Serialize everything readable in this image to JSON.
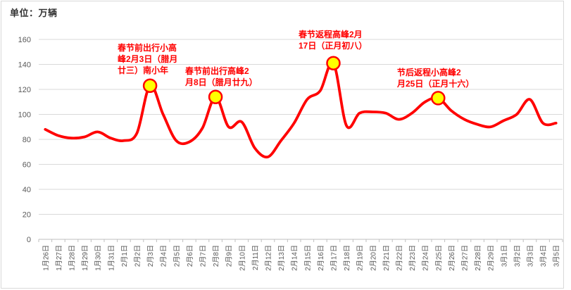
{
  "chart_data": {
    "type": "line",
    "unit_label": "单位：万辆",
    "xlabel": "",
    "ylabel": "",
    "ylim": [
      0,
      160
    ],
    "ytick_interval": 20,
    "grid": "horizontal",
    "legend": "none",
    "line_color": "#ff0000",
    "marker_fill": "#ffff00",
    "grid_color": "#d9d9d9",
    "axis_line_color": "#bfbfbf",
    "axis_text_color": "#595959",
    "categories": [
      "1月26日",
      "1月27日",
      "1月28日",
      "1月29日",
      "1月30日",
      "1月31日",
      "2月1日",
      "2月2日",
      "2月3日",
      "2月4日",
      "2月5日",
      "2月6日",
      "2月7日",
      "2月8日",
      "2月9日",
      "2月10日",
      "2月11日",
      "2月12日",
      "2月13日",
      "2月14日",
      "2月15日",
      "2月16日",
      "2月17日",
      "2月18日",
      "2月19日",
      "2月20日",
      "2月21日",
      "2月22日",
      "2月23日",
      "2月24日",
      "2月25日",
      "2月26日",
      "2月27日",
      "2月28日",
      "2月29日",
      "3月1日",
      "3月2日",
      "3月3日",
      "3月4日",
      "3月5日"
    ],
    "values": [
      88,
      83,
      81,
      82,
      86,
      81,
      79,
      85,
      123,
      100,
      79,
      78,
      89,
      114,
      90,
      94,
      73,
      66,
      79,
      93,
      112,
      119,
      141,
      91,
      101,
      102,
      101,
      96,
      101,
      110,
      113,
      103,
      96,
      92,
      90,
      95,
      100,
      112,
      93,
      93
    ],
    "marker_indices": [
      8,
      13,
      22,
      30
    ],
    "annotations": [
      {
        "text": "春节前出行小高\n峰2月3日（腊月\n廿三）南小年",
        "target": "2月3日",
        "peak_value": 123
      },
      {
        "text": "春节前出行高峰2\n月8日（腊月廿九）",
        "target": "2月8日",
        "peak_value": 114
      },
      {
        "text": "春节返程高峰2月\n17日（正月初八）",
        "target": "2月17日",
        "peak_value": 141
      },
      {
        "text": "节后返程小高峰2\n月25日（正月十六）",
        "target": "2月25日",
        "peak_value": 113
      }
    ]
  }
}
